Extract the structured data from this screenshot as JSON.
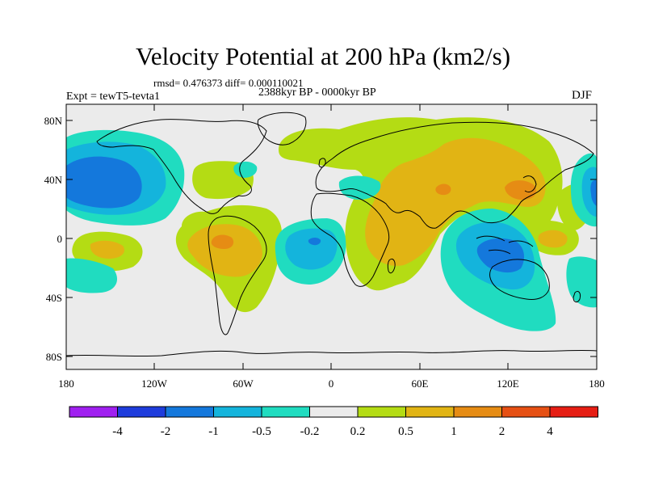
{
  "figure": {
    "title": "Velocity Potential at 200 hPa (km2/s)",
    "stats": "rmsd= 0.476373 diff= 0.000110021",
    "period": "2388kyr BP - 0000kyr BP",
    "experiment": "Expt = tewT5-tevta1",
    "season": "DJF"
  },
  "axes": {
    "lat_labels": [
      "80N",
      "40N",
      "0",
      "40S",
      "80S"
    ],
    "lon_labels": [
      "180",
      "120W",
      "60W",
      "0",
      "60E",
      "120E",
      "180"
    ]
  },
  "colorbar": {
    "colors": [
      "#a020f0",
      "#1e3cdc",
      "#1478dc",
      "#14b4dc",
      "#20dcc0",
      "#ebebeb",
      "#b4dc14",
      "#e1b414",
      "#e68c14",
      "#e65014",
      "#e61e14"
    ],
    "labels": [
      "-4",
      "-2",
      "-1",
      "-0.5",
      "-0.2",
      "0.2",
      "0.5",
      "1",
      "2",
      "4"
    ]
  },
  "fill_colors": {
    "background": "#ebebeb",
    "pos1": "#b4dc14",
    "pos2": "#e1b414",
    "pos3": "#e68c14",
    "neg1": "#20dcc0",
    "neg2": "#14b4dc",
    "neg3": "#1478dc"
  }
}
